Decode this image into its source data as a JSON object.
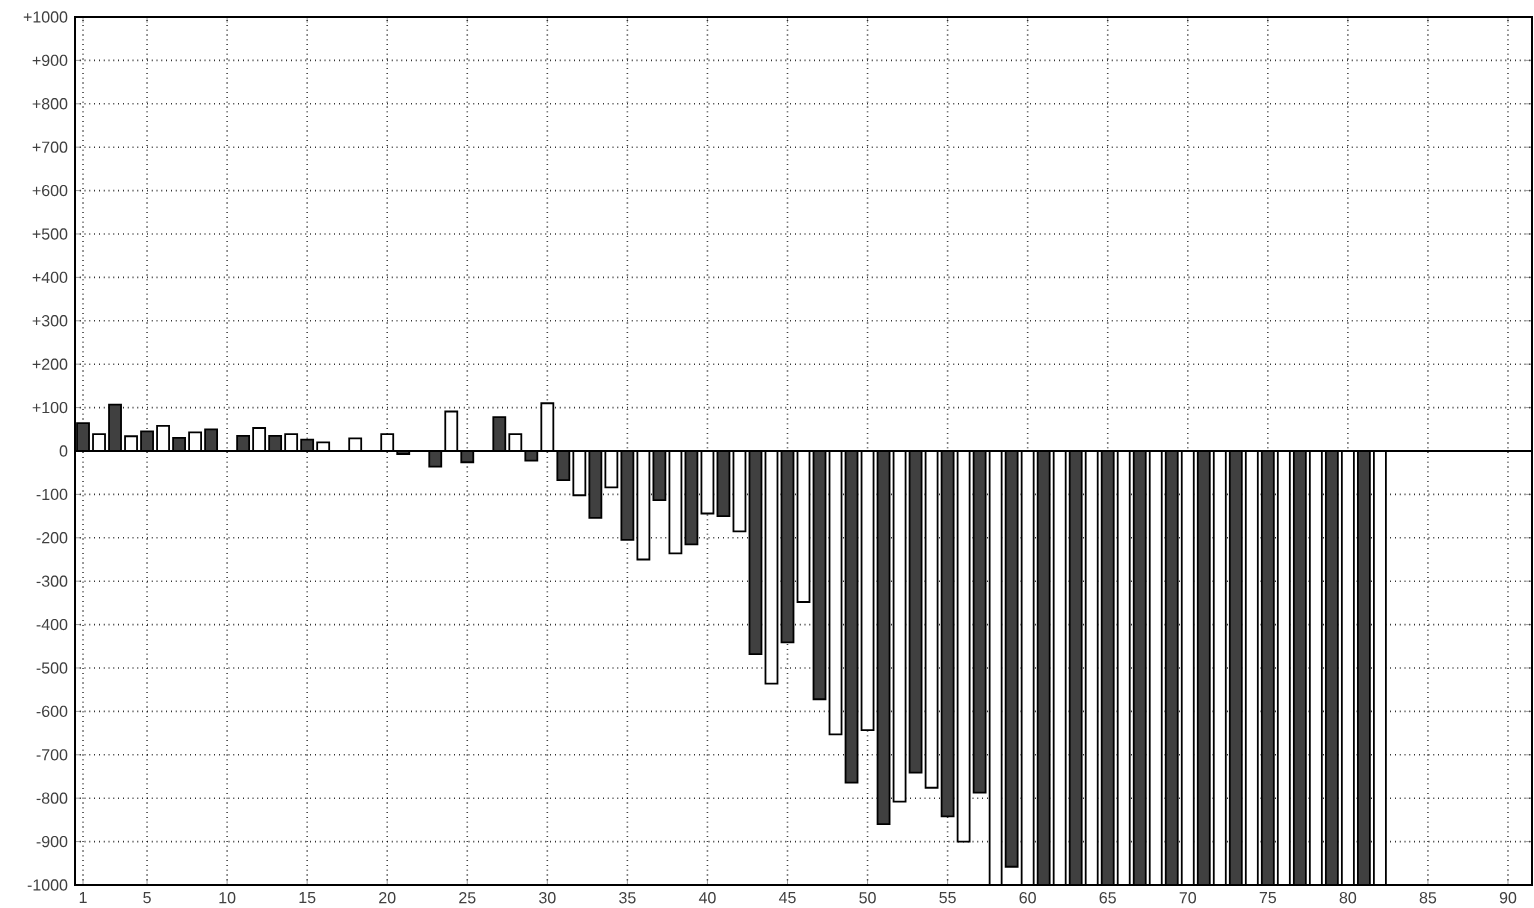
{
  "chart_data": {
    "type": "bar",
    "xlim": [
      0.5,
      91.5
    ],
    "xticks": [
      1,
      5,
      10,
      15,
      20,
      25,
      30,
      35,
      40,
      45,
      50,
      55,
      60,
      65,
      70,
      75,
      80,
      85,
      90
    ],
    "ylim": [
      -1000,
      1000
    ],
    "yticks": [
      -1000,
      -900,
      -800,
      -700,
      -600,
      -500,
      -400,
      -300,
      -200,
      -100,
      0,
      {
        "value": 100,
        "label": "+100"
      },
      {
        "value": 200,
        "label": "+200"
      },
      {
        "value": 300,
        "label": "+300"
      },
      {
        "value": 400,
        "label": "+400"
      },
      {
        "value": 500,
        "label": "+500"
      },
      {
        "value": 600,
        "label": "+600"
      },
      {
        "value": 700,
        "label": "+700"
      },
      {
        "value": 800,
        "label": "+800"
      },
      {
        "value": 900,
        "label": "+900"
      },
      {
        "value": 1000,
        "label": "+1000"
      }
    ],
    "grid": true,
    "series": [
      {
        "color": "#404040",
        "x": [
          1,
          3,
          5,
          7,
          9,
          11,
          13,
          15,
          17,
          19,
          21,
          23,
          25,
          27,
          29,
          31,
          33,
          35,
          37,
          39,
          41,
          43,
          45,
          47,
          49,
          51,
          53,
          55,
          57,
          59,
          61,
          63,
          65,
          67,
          69,
          71,
          73,
          75,
          77,
          79,
          81
        ],
        "values": [
          64,
          107,
          45,
          30,
          50,
          35,
          35,
          26,
          null,
          null,
          -7,
          -36,
          -26,
          78,
          -22,
          -67,
          -154,
          -205,
          -113,
          -215,
          -150,
          -468,
          -441,
          -572,
          -764,
          -860,
          -741,
          -842,
          -787,
          -958,
          -1000,
          -1000,
          -1000,
          -1000,
          -1000,
          -1000,
          -1000,
          -1000,
          -1000,
          -1000,
          -1000
        ]
      },
      {
        "color": "#ffffff",
        "x": [
          2,
          4,
          6,
          8,
          10,
          12,
          14,
          16,
          18,
          20,
          22,
          24,
          26,
          28,
          30,
          32,
          34,
          36,
          38,
          40,
          42,
          44,
          46,
          48,
          50,
          52,
          54,
          56,
          58,
          60,
          62,
          64,
          66,
          68,
          70,
          72,
          74,
          76,
          78,
          80,
          82
        ],
        "values": [
          39,
          34,
          58,
          43,
          null,
          53,
          39,
          20,
          29,
          39,
          null,
          91,
          null,
          39,
          110,
          -102,
          -84,
          -250,
          -236,
          -144,
          -185,
          -536,
          -348,
          -653,
          -643,
          -808,
          -776,
          -900,
          -1000,
          -1000,
          -1000,
          -1000,
          -1000,
          -1000,
          -1000,
          -1000,
          -1000,
          -1000,
          -1000,
          -1000,
          -1000
        ]
      }
    ]
  }
}
